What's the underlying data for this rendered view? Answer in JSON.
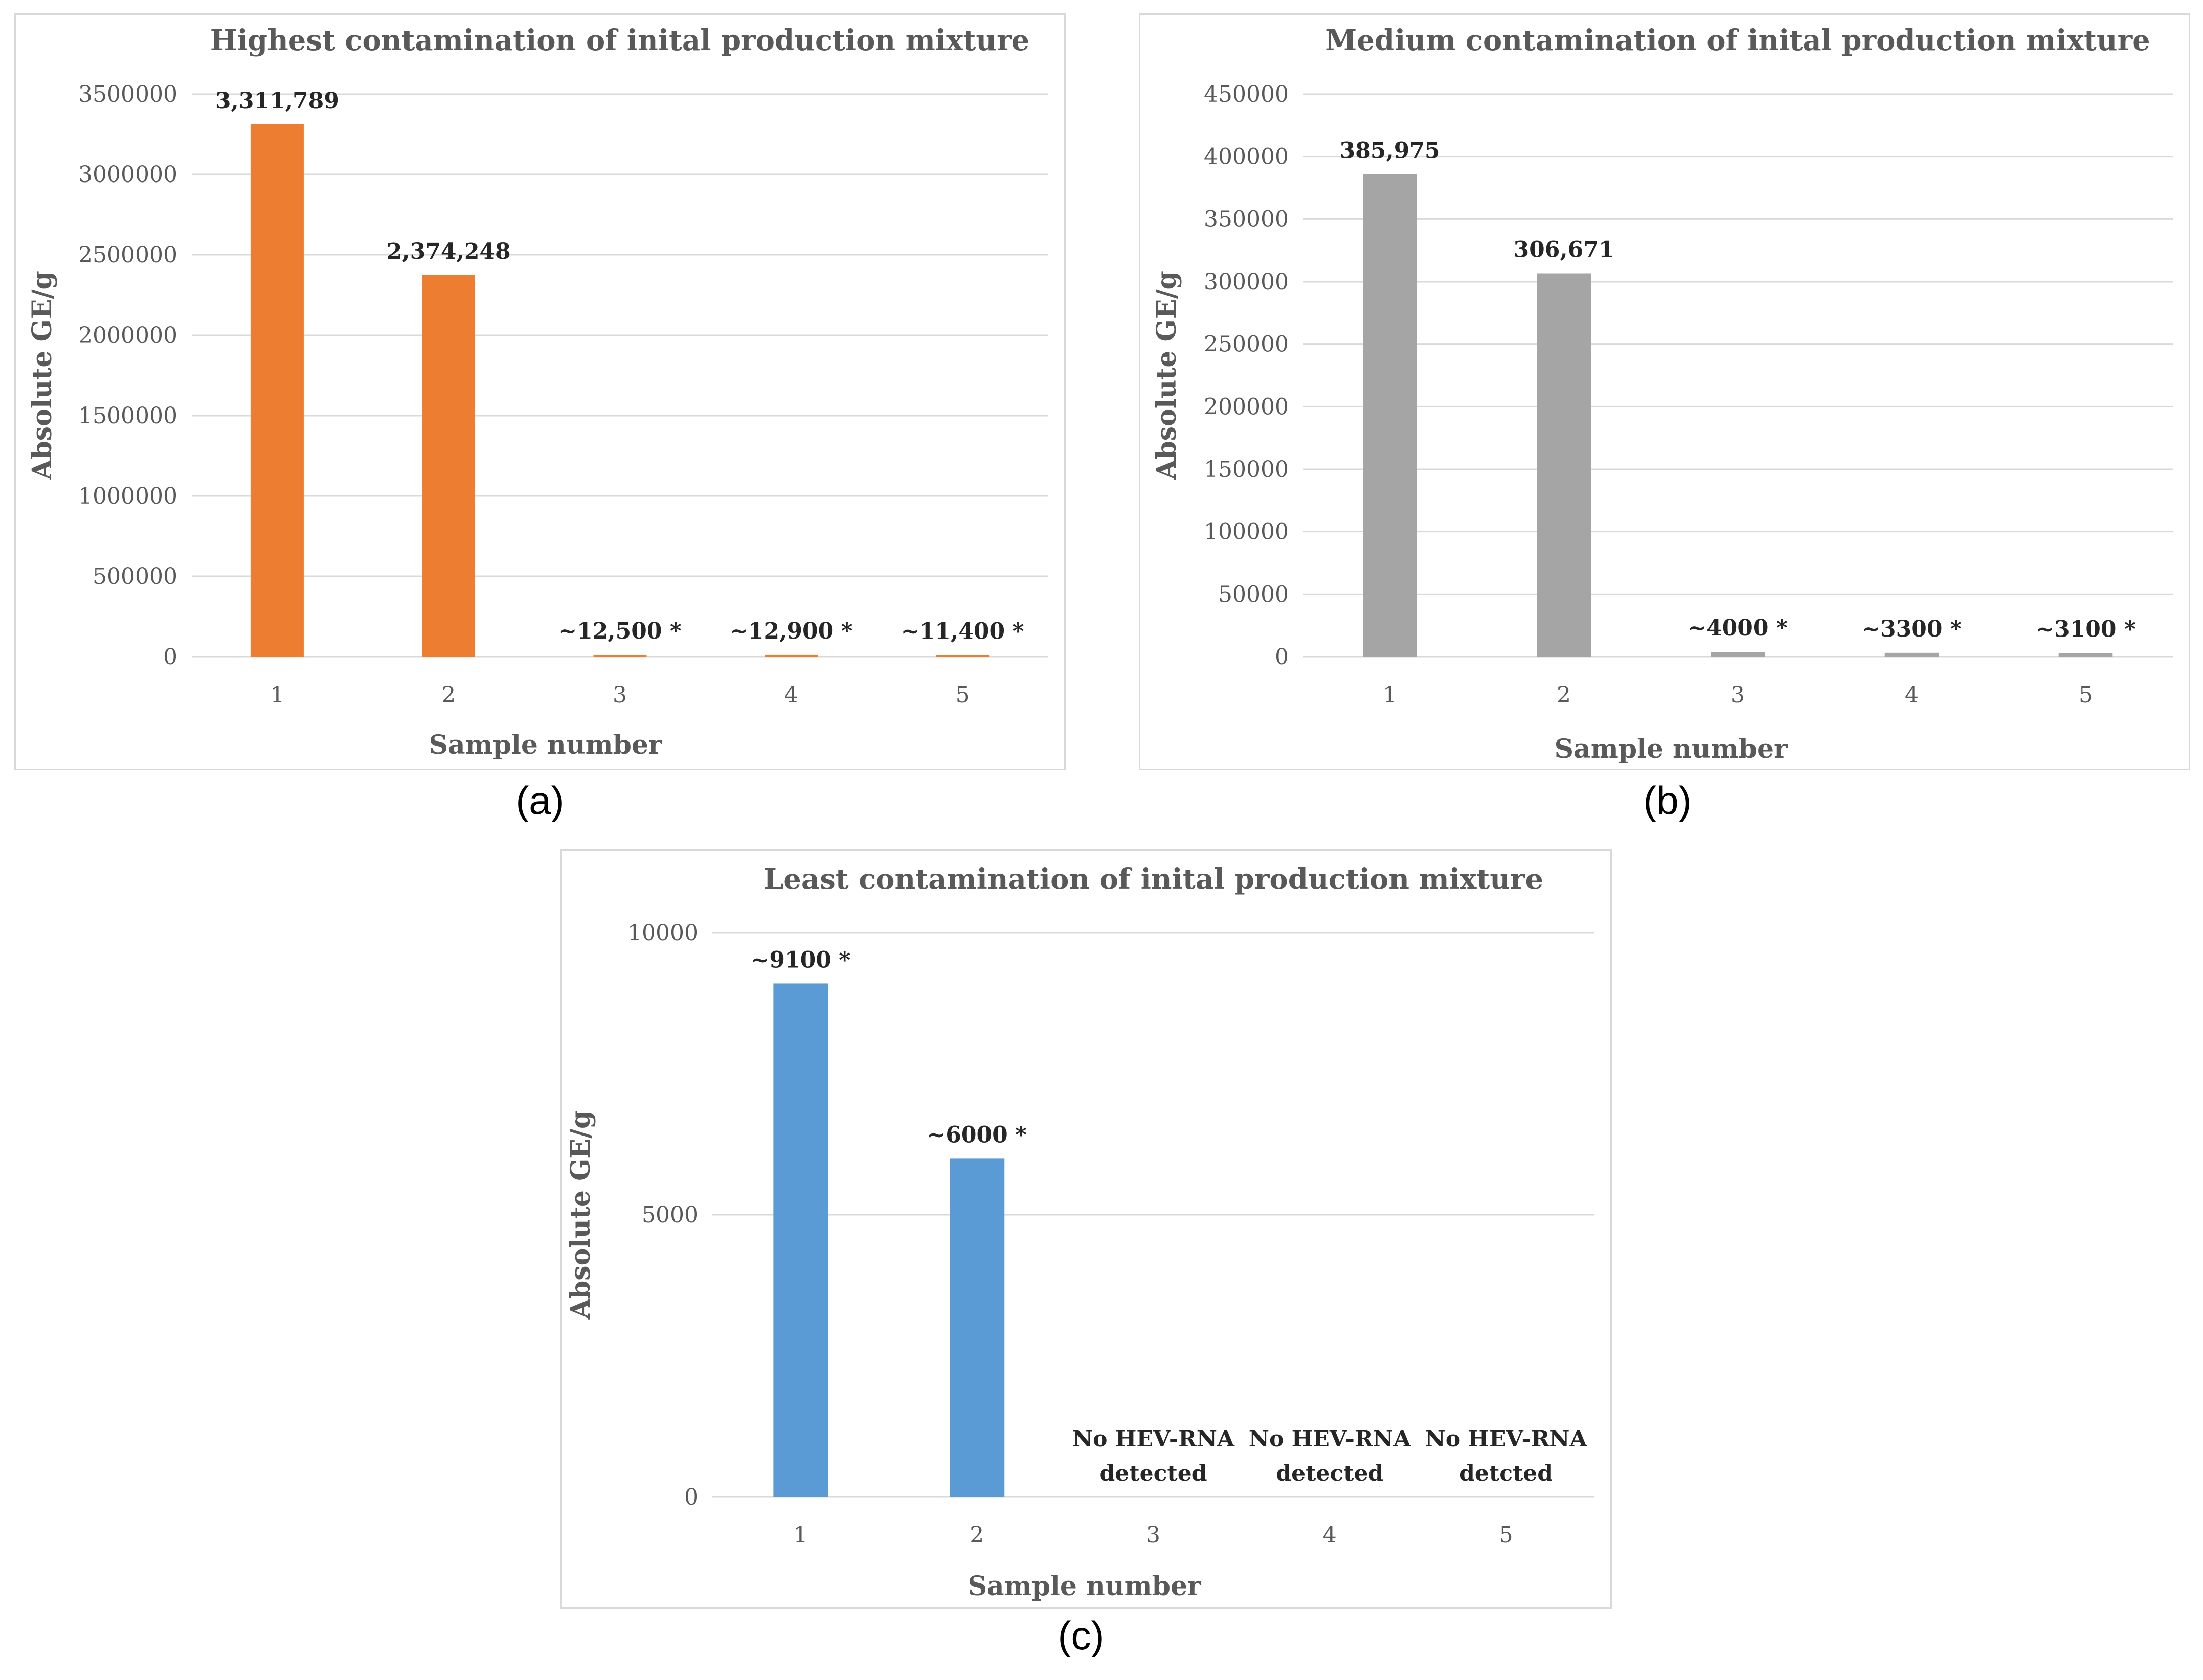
{
  "captions": [
    "(a)",
    "(b)",
    "(c)"
  ],
  "colors": {
    "a": "#ED7D31",
    "b": "#A5A5A5",
    "c": "#5B9BD5",
    "grid": "#d9d9d9"
  },
  "chart_data": [
    {
      "type": "bar",
      "title": "Highest contamination of inital production mixture",
      "xlabel": "Sample number",
      "ylabel": "Absolute GE/g",
      "categories": [
        "1",
        "2",
        "3",
        "4",
        "5"
      ],
      "values": [
        3311789,
        2374248,
        12500,
        12900,
        11400
      ],
      "data_labels": [
        "3,311,789",
        "2,374,248",
        "~12,500 *",
        "~12,900 *",
        "~11,400 *"
      ],
      "ylim": [
        0,
        3500000
      ],
      "yticks": [
        "0",
        "500000",
        "1000000",
        "1500000",
        "2000000",
        "2500000",
        "3000000",
        "3500000"
      ],
      "color": "#ED7D31",
      "grid": true,
      "legend": "none"
    },
    {
      "type": "bar",
      "title": "Medium contamination of inital production mixture",
      "xlabel": "Sample number",
      "ylabel": "Absolute GE/g",
      "categories": [
        "1",
        "2",
        "3",
        "4",
        "5"
      ],
      "values": [
        385975,
        306671,
        4000,
        3300,
        3100
      ],
      "data_labels": [
        "385,975",
        "306,671",
        "~4000 *",
        "~3300 *",
        "~3100 *"
      ],
      "ylim": [
        0,
        450000
      ],
      "yticks": [
        "0",
        "50000",
        "100000",
        "150000",
        "200000",
        "250000",
        "300000",
        "350000",
        "400000",
        "450000"
      ],
      "color": "#A5A5A5",
      "grid": true,
      "legend": "none"
    },
    {
      "type": "bar",
      "title": "Least contamination of inital production mixture",
      "xlabel": "Sample number",
      "ylabel": "Absolute GE/g",
      "categories": [
        "1",
        "2",
        "3",
        "4",
        "5"
      ],
      "values": [
        9100,
        6000,
        0,
        0,
        0
      ],
      "data_labels": [
        "~9100 *",
        "~6000 *",
        "",
        "",
        ""
      ],
      "no_detection_labels": [
        [
          "No HEV-RNA",
          "detected"
        ],
        [
          "No HEV-RNA",
          "detected"
        ],
        [
          "No HEV-RNA",
          "detcted"
        ]
      ],
      "ylim": [
        0,
        10000
      ],
      "yticks": [
        "0",
        "5000",
        "10000"
      ],
      "color": "#5B9BD5",
      "grid": true,
      "legend": "none"
    }
  ]
}
